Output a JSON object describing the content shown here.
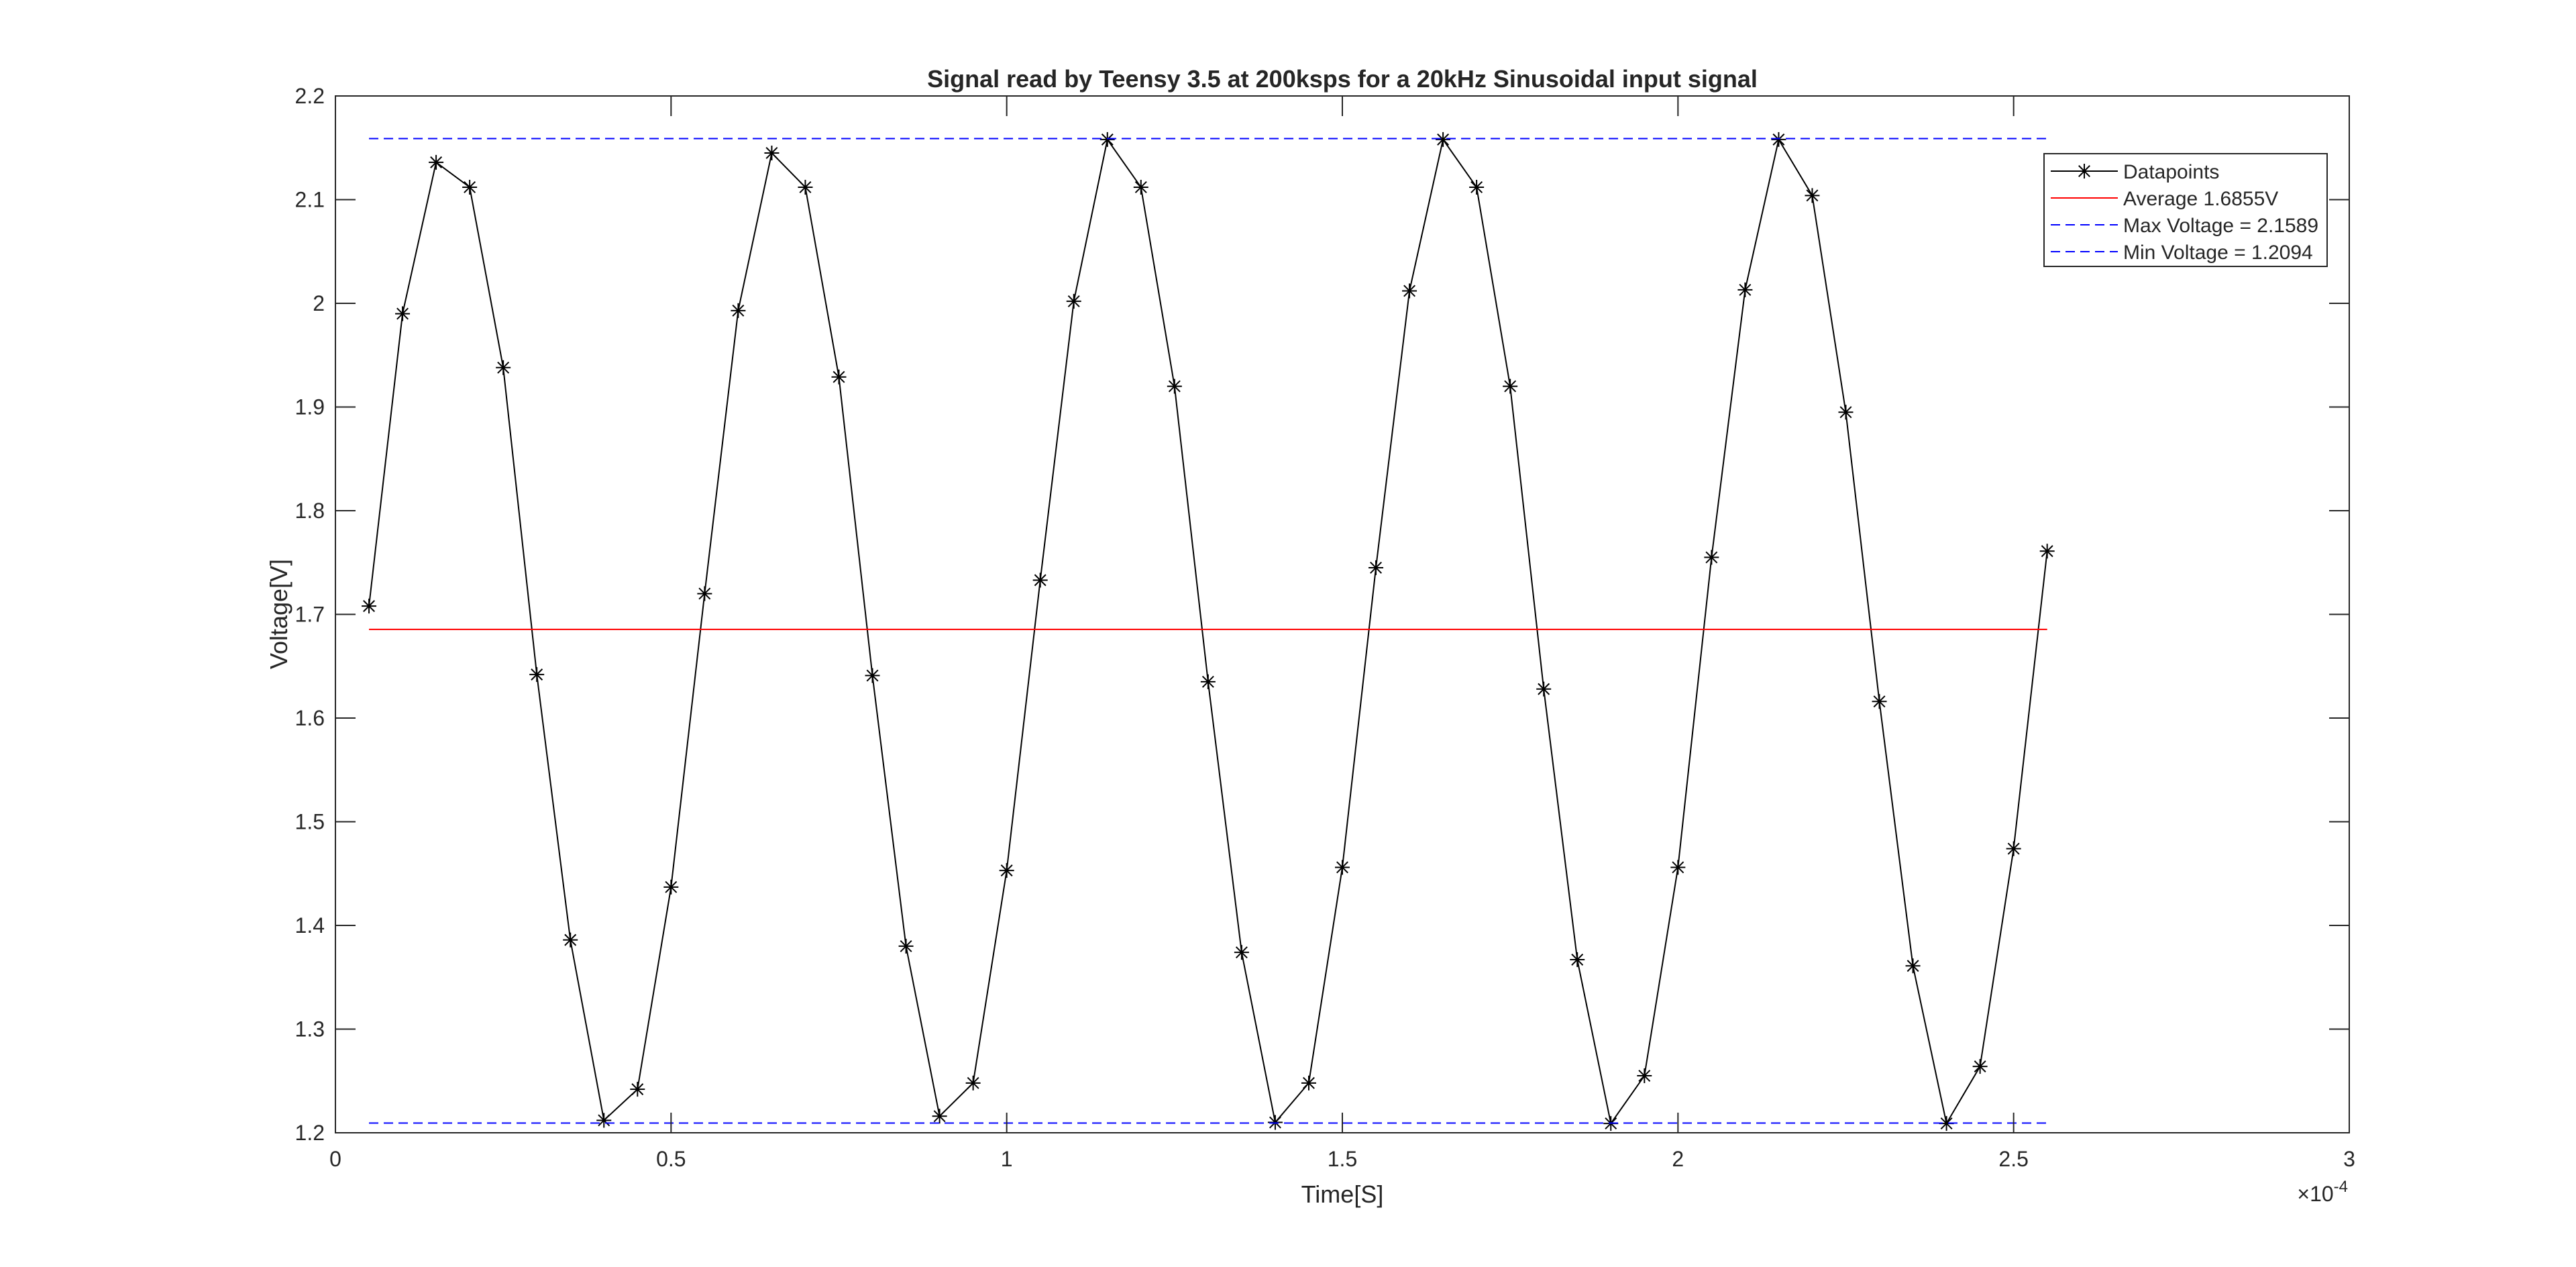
{
  "chart_data": {
    "type": "line",
    "title": "Signal read by Teensy 3.5 at 200ksps for a 20kHz Sinusoidal input signal",
    "xlabel": "Time[S]",
    "ylabel": "Voltage[V]",
    "x_exponent_label": "×10",
    "x_exponent_power": "-4",
    "xlim": [
      0,
      0.0003
    ],
    "ylim": [
      1.2,
      2.2
    ],
    "x_ticks": [
      0,
      5e-05,
      0.0001,
      0.00015,
      0.0002,
      0.00025,
      0.0003
    ],
    "x_tick_labels": [
      "0",
      "0.5",
      "1",
      "1.5",
      "2",
      "2.5",
      "3"
    ],
    "y_ticks": [
      1.2,
      1.3,
      1.4,
      1.5,
      1.6,
      1.7,
      1.8,
      1.9,
      2.0,
      2.1,
      2.2
    ],
    "y_tick_labels": [
      "1.2",
      "1.3",
      "1.4",
      "1.5",
      "1.6",
      "1.7",
      "1.8",
      "1.9",
      "2",
      "2.1",
      "2.2"
    ],
    "grid": false,
    "legend_position": "top-right",
    "series": [
      {
        "name": "Datapoints",
        "style": "solid-with-asterisk-markers",
        "color": "#000000",
        "x": [
          5e-06,
          1e-05,
          1.5e-05,
          2e-05,
          2.5e-05,
          3e-05,
          3.5e-05,
          4e-05,
          4.5e-05,
          5e-05,
          5.5e-05,
          6e-05,
          6.5e-05,
          7e-05,
          7.5e-05,
          8e-05,
          8.5e-05,
          9e-05,
          9.5e-05,
          0.0001,
          0.000105,
          0.00011,
          0.000115,
          0.00012,
          0.000125,
          0.00013,
          0.000135,
          0.00014,
          0.000145,
          0.00015,
          0.000155,
          0.00016,
          0.000165,
          0.00017,
          0.000175,
          0.00018,
          0.000185,
          0.00019,
          0.000195,
          0.0002,
          0.000205,
          0.00021,
          0.000215,
          0.00022,
          0.000225,
          0.00023,
          0.000235,
          0.00024,
          0.000245,
          0.00025,
          0.000255
        ],
        "y": [
          1.708,
          1.99,
          2.136,
          2.112,
          1.938,
          1.642,
          1.386,
          1.212,
          1.242,
          1.437,
          1.72,
          1.993,
          2.145,
          2.112,
          1.929,
          1.641,
          1.38,
          1.216,
          1.248,
          1.453,
          1.733,
          2.002,
          2.158,
          2.112,
          1.92,
          1.635,
          1.374,
          1.21,
          1.248,
          1.456,
          1.745,
          2.012,
          2.158,
          2.112,
          1.92,
          1.628,
          1.367,
          1.209,
          1.255,
          1.456,
          1.755,
          2.013,
          2.158,
          2.104,
          1.895,
          1.616,
          1.361,
          1.209,
          1.264,
          1.474,
          1.761
        ]
      },
      {
        "name": "Average 1.6855V",
        "style": "solid",
        "color": "#ff0000",
        "x": [
          5e-06,
          0.000255
        ],
        "y": [
          1.6855,
          1.6855
        ]
      },
      {
        "name": "Max Voltage = 2.1589",
        "style": "dashed",
        "color": "#0000ff",
        "x": [
          5e-06,
          0.000255
        ],
        "y": [
          2.1589,
          2.1589
        ]
      },
      {
        "name": "Min Voltage = 1.2094",
        "style": "dashed",
        "color": "#0000ff",
        "x": [
          5e-06,
          0.000255
        ],
        "y": [
          1.2094,
          1.2094
        ]
      }
    ]
  }
}
